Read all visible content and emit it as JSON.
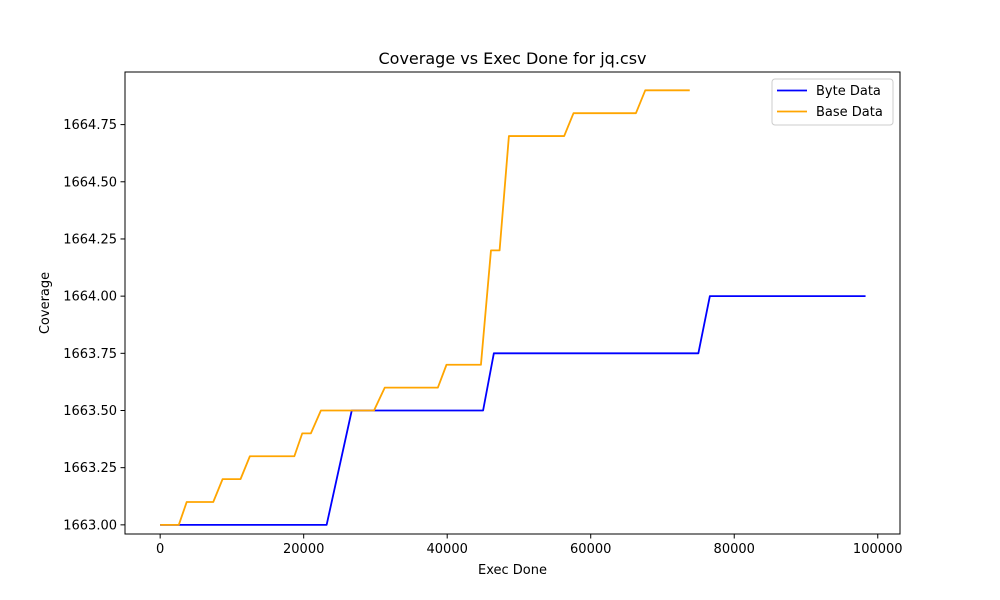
{
  "chart_data": {
    "type": "line",
    "title": "Coverage vs Exec Done for jq.csv",
    "xlabel": "Exec Done",
    "ylabel": "Coverage",
    "xlim": [
      -4900,
      103100
    ],
    "ylim": [
      1662.96,
      1664.98
    ],
    "xticks": [
      0,
      20000,
      40000,
      60000,
      80000,
      100000
    ],
    "yticks": [
      1663.0,
      1663.25,
      1663.5,
      1663.75,
      1664.0,
      1664.25,
      1664.5,
      1664.75
    ],
    "xtick_labels": [
      "0",
      "20000",
      "40000",
      "60000",
      "80000",
      "100000"
    ],
    "ytick_labels": [
      "1663.00",
      "1663.25",
      "1663.50",
      "1663.75",
      "1664.00",
      "1664.25",
      "1664.50",
      "1664.75"
    ],
    "grid": false,
    "legend_position": "top-right",
    "series": [
      {
        "name": "Byte Data",
        "color": "#0000ff",
        "x": [
          0,
          2500,
          23200,
          26700,
          45000,
          46500,
          75000,
          76600,
          98300
        ],
        "y": [
          1663.0,
          1663.0,
          1663.0,
          1663.5,
          1663.5,
          1663.75,
          1663.75,
          1664.0,
          1664.0
        ]
      },
      {
        "name": "Base Data",
        "color": "#ffa500",
        "x": [
          0,
          2600,
          3700,
          7400,
          8700,
          11200,
          12500,
          18700,
          19800,
          21000,
          22400,
          29800,
          31300,
          38700,
          39900,
          44700,
          46100,
          47300,
          48600,
          56300,
          57600,
          66300,
          67600,
          73800
        ],
        "y": [
          1663.0,
          1663.0,
          1663.1,
          1663.1,
          1663.2,
          1663.2,
          1663.3,
          1663.3,
          1663.4,
          1663.4,
          1663.5,
          1663.5,
          1663.6,
          1663.6,
          1663.7,
          1663.7,
          1664.2,
          1664.2,
          1664.7,
          1664.7,
          1664.8,
          1664.8,
          1664.9,
          1664.9
        ]
      }
    ]
  }
}
